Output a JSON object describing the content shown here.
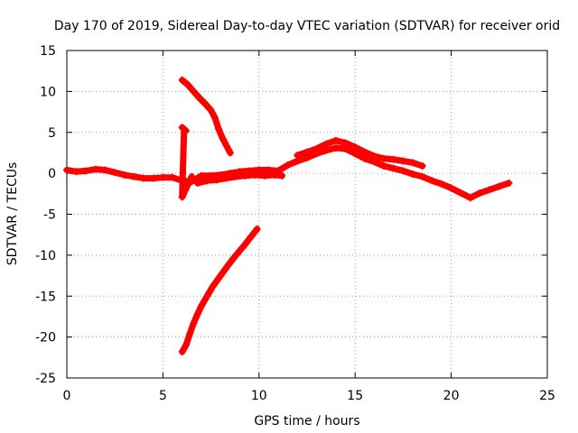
{
  "chart_data": {
    "type": "scatter",
    "title": "Day 170 of 2019, Sidereal Day-to-day VTEC variation (SDTVAR) for receiver orid",
    "xlabel": "GPS time / hours",
    "ylabel": "SDTVAR / TECUs",
    "xlim": [
      0,
      25
    ],
    "ylim": [
      -25,
      15
    ],
    "xticks": [
      0,
      5,
      10,
      15,
      20,
      25
    ],
    "yticks": [
      -25,
      -20,
      -15,
      -10,
      -5,
      0,
      5,
      10,
      15
    ],
    "grid": true,
    "marker": "+",
    "series": [
      {
        "name": "main trace",
        "color": "#ff0000",
        "points": [
          [
            0.0,
            0.4
          ],
          [
            0.5,
            0.2
          ],
          [
            1.0,
            0.3
          ],
          [
            1.5,
            0.5
          ],
          [
            2.0,
            0.4
          ],
          [
            2.5,
            0.1
          ],
          [
            3.0,
            -0.2
          ],
          [
            3.5,
            -0.4
          ],
          [
            4.0,
            -0.6
          ],
          [
            4.5,
            -0.6
          ],
          [
            5.0,
            -0.5
          ],
          [
            5.5,
            -0.5
          ],
          [
            6.0,
            -0.9
          ],
          [
            6.5,
            -1.0
          ],
          [
            7.0,
            -0.3
          ],
          [
            7.5,
            -0.3
          ],
          [
            8.0,
            -0.2
          ],
          [
            8.5,
            0.0
          ],
          [
            9.0,
            0.2
          ],
          [
            9.5,
            0.3
          ],
          [
            10.0,
            0.4
          ],
          [
            10.5,
            0.4
          ],
          [
            11.0,
            0.3
          ],
          [
            11.5,
            1.0
          ],
          [
            12.0,
            1.5
          ],
          [
            12.5,
            1.9
          ],
          [
            13.0,
            2.4
          ],
          [
            13.5,
            2.8
          ],
          [
            14.0,
            3.1
          ],
          [
            14.5,
            3.0
          ],
          [
            15.0,
            2.4
          ],
          [
            15.5,
            1.8
          ],
          [
            16.0,
            1.4
          ],
          [
            16.5,
            0.9
          ],
          [
            17.0,
            0.6
          ],
          [
            17.5,
            0.3
          ],
          [
            18.0,
            -0.1
          ],
          [
            18.5,
            -0.4
          ],
          [
            19.0,
            -0.9
          ],
          [
            19.5,
            -1.3
          ],
          [
            20.0,
            -1.8
          ],
          [
            20.5,
            -2.4
          ],
          [
            21.0,
            -3.0
          ],
          [
            21.5,
            -2.4
          ],
          [
            22.0,
            -2.0
          ],
          [
            22.5,
            -1.6
          ],
          [
            23.0,
            -1.2
          ]
        ]
      },
      {
        "name": "upper secondary trace",
        "color": "#ff0000",
        "points": [
          [
            12.0,
            2.2
          ],
          [
            12.5,
            2.6
          ],
          [
            13.0,
            3.0
          ],
          [
            13.5,
            3.6
          ],
          [
            14.0,
            4.0
          ],
          [
            14.5,
            3.7
          ],
          [
            15.0,
            3.2
          ],
          [
            15.5,
            2.6
          ],
          [
            16.0,
            2.1
          ],
          [
            16.5,
            1.8
          ],
          [
            17.0,
            1.7
          ],
          [
            17.5,
            1.5
          ],
          [
            18.0,
            1.3
          ],
          [
            18.5,
            0.9
          ]
        ]
      },
      {
        "name": "lower secondary trace",
        "color": "#ff0000",
        "points": [
          [
            6.8,
            -1.2
          ],
          [
            7.3,
            -0.9
          ],
          [
            7.8,
            -0.8
          ],
          [
            8.3,
            -0.6
          ],
          [
            8.8,
            -0.4
          ],
          [
            9.3,
            -0.3
          ],
          [
            9.8,
            -0.2
          ],
          [
            10.3,
            -0.3
          ],
          [
            10.8,
            -0.2
          ],
          [
            11.2,
            -0.3
          ]
        ]
      },
      {
        "name": "descending arc",
        "color": "#ff0000",
        "points": [
          [
            6.0,
            11.4
          ],
          [
            6.3,
            10.8
          ],
          [
            6.6,
            10.0
          ],
          [
            6.9,
            9.2
          ],
          [
            7.2,
            8.5
          ],
          [
            7.5,
            7.7
          ],
          [
            7.7,
            6.8
          ],
          [
            7.9,
            5.4
          ],
          [
            8.1,
            4.3
          ],
          [
            8.3,
            3.4
          ],
          [
            8.5,
            2.5
          ]
        ]
      },
      {
        "name": "ascending arc",
        "color": "#ff0000",
        "points": [
          [
            6.0,
            -21.8
          ],
          [
            6.2,
            -21.0
          ],
          [
            6.4,
            -19.6
          ],
          [
            6.6,
            -18.3
          ],
          [
            6.8,
            -17.2
          ],
          [
            7.0,
            -16.2
          ],
          [
            7.3,
            -15.0
          ],
          [
            7.6,
            -13.8
          ],
          [
            8.0,
            -12.5
          ],
          [
            8.4,
            -11.2
          ],
          [
            8.8,
            -10.0
          ],
          [
            9.2,
            -8.9
          ],
          [
            9.6,
            -7.7
          ],
          [
            9.9,
            -6.8
          ]
        ]
      },
      {
        "name": "isolated points",
        "color": "#ff0000",
        "points": [
          [
            6.0,
            5.6
          ],
          [
            6.2,
            5.2
          ],
          [
            6.1,
            5.4
          ],
          [
            6.0,
            -2.9
          ],
          [
            6.5,
            -0.4
          ]
        ]
      }
    ]
  }
}
